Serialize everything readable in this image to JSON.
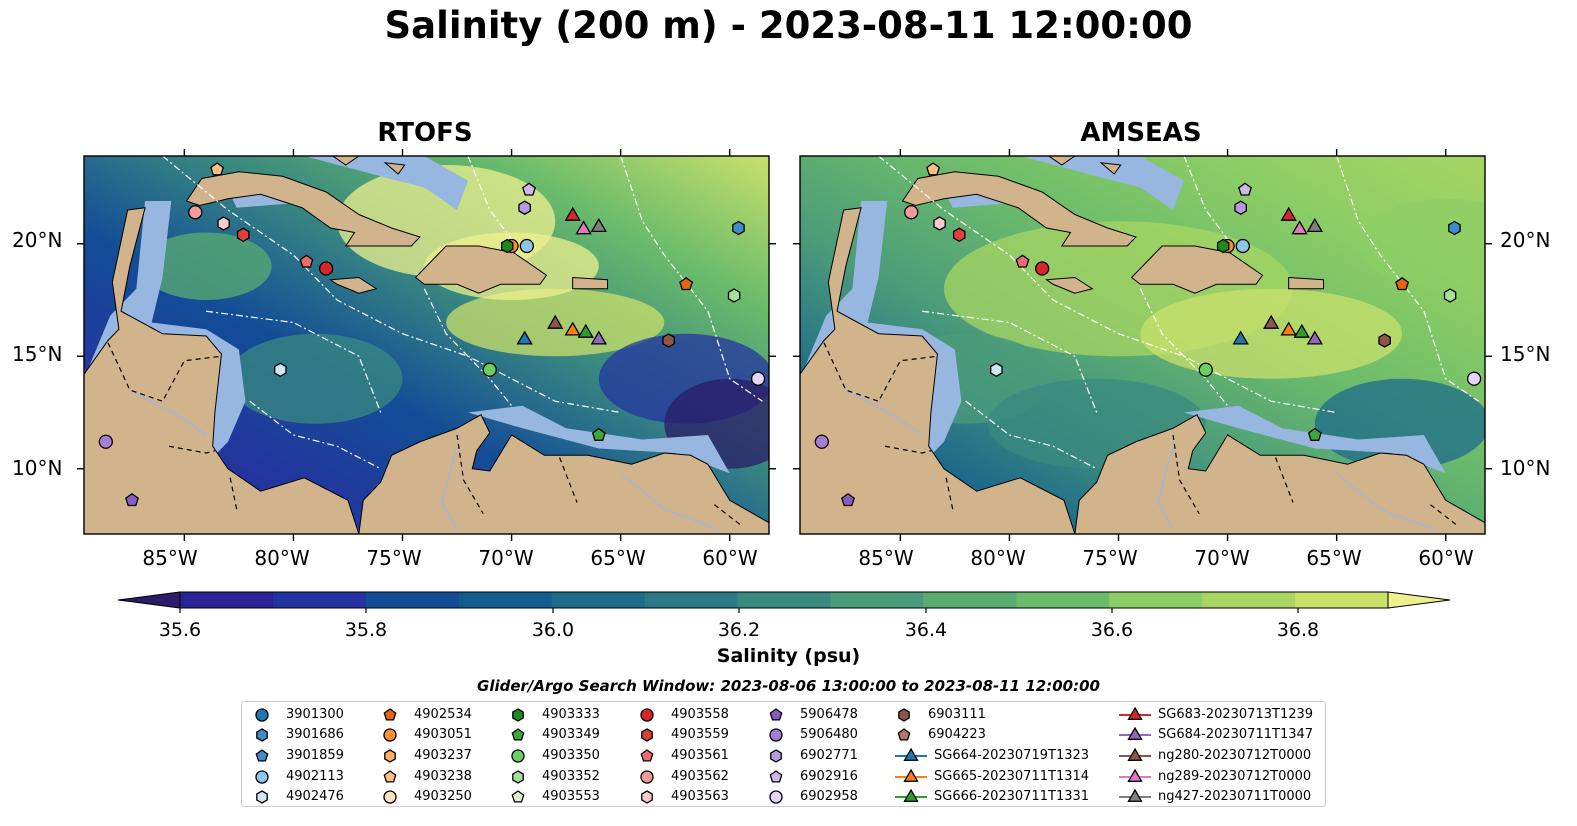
{
  "title": "Salinity (200 m) - 2023-08-11 12:00:00",
  "panels": [
    {
      "title": "RTOFS"
    },
    {
      "title": "AMSEAS"
    }
  ],
  "lat_ticks": [
    "20°N",
    "15°N",
    "10°N"
  ],
  "lon_ticks": [
    "85°W",
    "80°W",
    "75°W",
    "70°W",
    "65°W",
    "60°W"
  ],
  "colors": {
    "land": "#d2b48c",
    "shallow_water": "#97b6e0",
    "track_line": "#ffffff"
  },
  "colorbar": {
    "label": "Salinity (psu)",
    "ticks": [
      "35.6",
      "35.8",
      "36.0",
      "36.2",
      "36.4",
      "36.6",
      "36.8"
    ],
    "colors": [
      "#2a1c68",
      "#2b2393",
      "#24349f",
      "#134d97",
      "#105d8e",
      "#1e6b8a",
      "#2d7886",
      "#3a8a80",
      "#4b9c7a",
      "#5aac72",
      "#6cbc6b",
      "#8ccd65",
      "#a8d563",
      "#c9e06b",
      "#eef08e"
    ]
  },
  "search_window": "Glider/Argo Search Window: 2023-08-06 13:00:00 to 2023-08-11 12:00:00",
  "legend": [
    {
      "label": "3901300",
      "marker": "circle",
      "color": "#1f77b4"
    },
    {
      "label": "3901686",
      "marker": "hexagon",
      "color": "#3c8dc8"
    },
    {
      "label": "3901859",
      "marker": "pentagon",
      "color": "#3c8dc8"
    },
    {
      "label": "4902113",
      "marker": "circle",
      "color": "#8ec5ea"
    },
    {
      "label": "4902476",
      "marker": "hexagon",
      "color": "#cfe8f7"
    },
    {
      "label": "4902534",
      "marker": "pentagon",
      "color": "#e6650f"
    },
    {
      "label": "4903051",
      "marker": "circle",
      "color": "#ff8f34"
    },
    {
      "label": "4903237",
      "marker": "hexagon",
      "color": "#ffae66"
    },
    {
      "label": "4903238",
      "marker": "pentagon",
      "color": "#ffbe84"
    },
    {
      "label": "4903250",
      "marker": "circle",
      "color": "#ffe1bf"
    },
    {
      "label": "4903333",
      "marker": "hexagon",
      "color": "#1e8a1e"
    },
    {
      "label": "4903349",
      "marker": "pentagon",
      "color": "#3aa83a"
    },
    {
      "label": "4903350",
      "marker": "circle",
      "color": "#6acf5e"
    },
    {
      "label": "4903352",
      "marker": "hexagon",
      "color": "#a3e29a"
    },
    {
      "label": "4903553",
      "marker": "pentagon",
      "color": "#d8f4d0"
    },
    {
      "label": "4903558",
      "marker": "circle",
      "color": "#d62728"
    },
    {
      "label": "4903559",
      "marker": "hexagon",
      "color": "#e0403a"
    },
    {
      "label": "4903561",
      "marker": "pentagon",
      "color": "#ef6c6c"
    },
    {
      "label": "4903562",
      "marker": "circle",
      "color": "#f59a9a"
    },
    {
      "label": "4903563",
      "marker": "hexagon",
      "color": "#fbcaca"
    },
    {
      "label": "5906478",
      "marker": "pentagon",
      "color": "#8a5cc2"
    },
    {
      "label": "5906480",
      "marker": "circle",
      "color": "#a57fd4"
    },
    {
      "label": "6902771",
      "marker": "hexagon",
      "color": "#b99ae0"
    },
    {
      "label": "6902916",
      "marker": "pentagon",
      "color": "#cfb7ec"
    },
    {
      "label": "6902958",
      "marker": "circle",
      "color": "#e5d6f7"
    },
    {
      "label": "6903111",
      "marker": "hexagon",
      "color": "#8c564b"
    },
    {
      "label": "6904223",
      "marker": "pentagon",
      "color": "#b07a6b"
    },
    {
      "label": "SG664-20230719T1323",
      "marker": "triangle",
      "color": "#1f77b4"
    },
    {
      "label": "SG665-20230711T1314",
      "marker": "triangle",
      "color": "#ff7f0e"
    },
    {
      "label": "SG666-20230711T1331",
      "marker": "triangle",
      "color": "#2ca02c"
    },
    {
      "label": "SG683-20230713T1239",
      "marker": "triangle",
      "color": "#d62728"
    },
    {
      "label": "SG684-20230711T1347",
      "marker": "triangle",
      "color": "#9467bd"
    },
    {
      "label": "ng280-20230712T0000",
      "marker": "triangle",
      "color": "#8c564b"
    },
    {
      "label": "ng289-20230712T0000",
      "marker": "triangle",
      "color": "#e377c2"
    },
    {
      "label": "ng427-20230711T0000",
      "marker": "triangle",
      "color": "#7f7f7f"
    }
  ],
  "observations": [
    {
      "id": "4903562",
      "lon": -84.5,
      "lat": 21.4
    },
    {
      "id": "4903563",
      "lon": -83.2,
      "lat": 20.9
    },
    {
      "id": "4903559",
      "lon": -82.3,
      "lat": 20.4
    },
    {
      "id": "4903238",
      "lon": -83.5,
      "lat": 23.3
    },
    {
      "id": "4903561",
      "lon": -79.4,
      "lat": 19.2
    },
    {
      "id": "4903558",
      "lon": -78.5,
      "lat": 18.9
    },
    {
      "id": "4903051",
      "lon": -70.0,
      "lat": 19.9
    },
    {
      "id": "4903333",
      "lon": -70.2,
      "lat": 19.9
    },
    {
      "id": "4902113",
      "lon": -69.3,
      "lat": 19.9
    },
    {
      "id": "6902916",
      "lon": -69.2,
      "lat": 22.4
    },
    {
      "id": "6902771",
      "lon": -69.4,
      "lat": 21.6
    },
    {
      "id": "4903349",
      "lon": -66.0,
      "lat": 11.5
    },
    {
      "id": "4903350",
      "lon": -71.0,
      "lat": 14.4
    },
    {
      "id": "4902476",
      "lon": -80.6,
      "lat": 14.4
    },
    {
      "id": "4903352",
      "lon": -59.8,
      "lat": 17.7
    },
    {
      "id": "4902534",
      "lon": -62.0,
      "lat": 18.2
    },
    {
      "id": "3901686",
      "lon": -59.6,
      "lat": 20.7
    },
    {
      "id": "6903111",
      "lon": -62.8,
      "lat": 15.7
    },
    {
      "id": "6902958",
      "lon": -58.7,
      "lat": 14.0
    },
    {
      "id": "5906480",
      "lon": -88.6,
      "lat": 11.2
    },
    {
      "id": "5906478",
      "lon": -87.4,
      "lat": 8.6
    },
    {
      "id": "SG683-20230713T1239",
      "lon": -67.2,
      "lat": 21.3
    },
    {
      "id": "ng289-20230712T0000",
      "lon": -66.7,
      "lat": 20.7
    },
    {
      "id": "ng427-20230711T0000",
      "lon": -66.0,
      "lat": 20.8
    },
    {
      "id": "SG664-20230719T1323",
      "lon": -69.4,
      "lat": 15.8
    },
    {
      "id": "ng280-20230712T0000",
      "lon": -68.0,
      "lat": 16.5
    },
    {
      "id": "SG665-20230711T1314",
      "lon": -67.2,
      "lat": 16.2
    },
    {
      "id": "SG666-20230711T1331",
      "lon": -66.6,
      "lat": 16.1
    },
    {
      "id": "SG684-20230711T1347",
      "lon": -66.0,
      "lat": 15.8
    }
  ]
}
